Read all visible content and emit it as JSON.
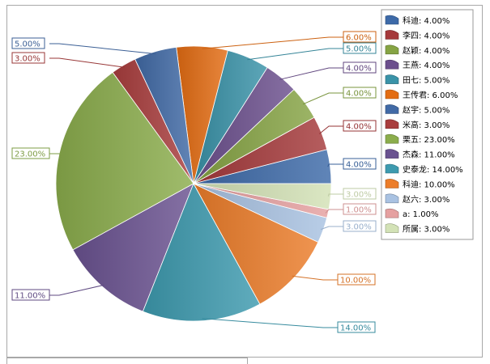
{
  "chart_data": {
    "type": "pie",
    "title": "",
    "legend_position": "right",
    "series": [
      {
        "name": "科迪",
        "value": 4.0,
        "label": "4.00%",
        "legend": "科迪: 4.00%",
        "color": "#3d6aa8"
      },
      {
        "name": "李四",
        "value": 4.0,
        "label": "4.00%",
        "legend": "李四: 4.00%",
        "color": "#a5393b"
      },
      {
        "name": "赵颖",
        "value": 4.0,
        "label": "4.00%",
        "legend": "赵颖: 4.00%",
        "color": "#86a444"
      },
      {
        "name": "王燕",
        "value": 4.0,
        "label": "4.00%",
        "legend": "王燕: 4.00%",
        "color": "#6c4f8d"
      },
      {
        "name": "田七",
        "value": 5.0,
        "label": "5.00%",
        "legend": "田七: 5.00%",
        "color": "#3a93a8"
      },
      {
        "name": "王传君",
        "value": 6.0,
        "label": "6.00%",
        "legend": "王传君: 6.00%",
        "color": "#e36c12"
      },
      {
        "name": "赵宇",
        "value": 5.0,
        "label": "5.00%",
        "legend": "赵宇: 5.00%",
        "color": "#416aa6"
      },
      {
        "name": "米高",
        "value": 3.0,
        "label": "3.00%",
        "legend": "米高: 3.00%",
        "color": "#a93d3d"
      },
      {
        "name": "栗五",
        "value": 23.0,
        "label": "23.00%",
        "legend": "栗五: 23.00%",
        "color": "#8bad4c"
      },
      {
        "name": "杰森",
        "value": 11.0,
        "label": "11.00%",
        "legend": "杰森: 11.00%",
        "color": "#6a5290"
      },
      {
        "name": "史泰龙",
        "value": 14.0,
        "label": "14.00%",
        "legend": "史泰龙: 14.00%",
        "color": "#3d9aaf"
      },
      {
        "name": "科迪",
        "value": 10.0,
        "label": "10.00%",
        "legend": "科迪: 10.00%",
        "color": "#ec7d2a"
      },
      {
        "name": "赵六",
        "value": 3.0,
        "label": "3.00%",
        "legend": "赵六: 3.00%",
        "color": "#a9c2e2"
      },
      {
        "name": "a",
        "value": 1.0,
        "label": "1.00%",
        "legend": "a: 1.00%",
        "color": "#e5a0a0"
      },
      {
        "name": "所属",
        "value": 3.0,
        "label": "3.00%",
        "legend": "所属: 3.00%",
        "color": "#d3e2b6"
      }
    ]
  }
}
